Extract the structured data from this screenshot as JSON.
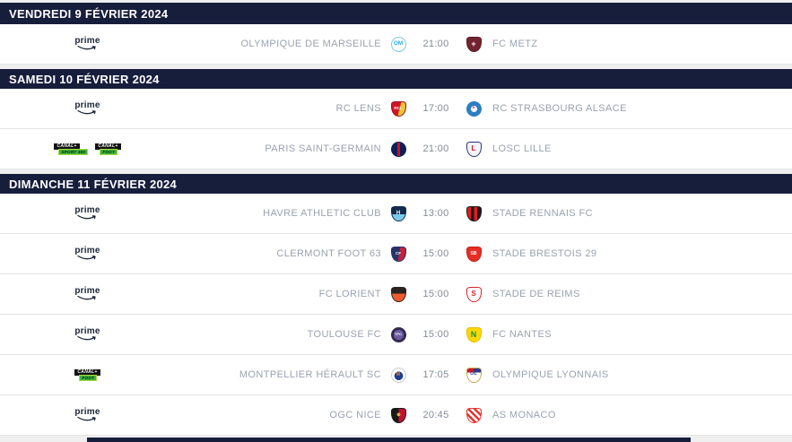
{
  "page": {
    "title": "Ligue 1 fixtures",
    "background": "#efeff0"
  },
  "colors": {
    "header_bg": "#171e3c",
    "row_bg": "#ffffff",
    "team_text": "#9aa2b1",
    "time_text": "#848b99",
    "row_border": "#e4e4e6",
    "canal_green": "#3db53d",
    "prime_dark": "#1b2535"
  },
  "broadcasters": {
    "prime": {
      "type": "prime",
      "label": "prime",
      "icon": "prime-video-logo"
    },
    "canal_sport360": {
      "type": "canal",
      "top": "CANAL+",
      "bottom": "SPORT 360",
      "icon": "canal-plus-sport-360-logo"
    },
    "canal_foot": {
      "type": "canal",
      "top": "CANAL+",
      "bottom": "FOOT",
      "icon": "canal-plus-foot-logo"
    }
  },
  "logos": {
    "marseille": {
      "shape": "circle",
      "background": "#ffffff",
      "border": "1px solid #7ec9ec",
      "text": "OM",
      "text_color": "#2faee0",
      "font_size": 6.5
    },
    "metz": {
      "shape": "shield",
      "background": "#72232e",
      "border": "1px solid #5a1b24",
      "text": "+",
      "text_color": "#ffffff",
      "font_size": 9
    },
    "lens": {
      "shape": "shield",
      "background": "linear-gradient(105deg,#d01626 55%,#efc431 55%)",
      "border": "1px solid #9f1320",
      "text": "RCL",
      "text_color": "#ffffff",
      "font_size": 4.5
    },
    "strasbourg": {
      "shape": "circle",
      "background": "radial-gradient(circle at 50% 50%, #ffffff 32%, #2d7fc3 34%)",
      "border": "1px solid #2d7fc3",
      "text": "+",
      "text_color": "#d01626",
      "font_size": 6
    },
    "psg": {
      "shape": "circle",
      "background": "linear-gradient(90deg,#0e1f58 40%,#cf1020 40% 60%,#0e1f58 60%)",
      "border": "1px solid #0e1f58",
      "text": "",
      "text_color": "#ffffff",
      "font_size": 0
    },
    "lille": {
      "shape": "shield",
      "background": "#f4f4f8",
      "border": "1px solid #26337a",
      "text": "L",
      "text_color": "#d01626",
      "font_size": 8
    },
    "havre": {
      "shape": "shield",
      "background": "linear-gradient(180deg,#112a4e 52%,#79cbe9 52%)",
      "border": "1px solid #112a4e",
      "text": "H",
      "text_color": "#ffffff",
      "font_size": 6
    },
    "rennes": {
      "shape": "shield",
      "background": "linear-gradient(90deg,#e11b22 25%,#1a1a1a 25% 50%,#e11b22 50% 75%,#1a1a1a 75%)",
      "border": "1px solid #1a1a1a",
      "text": "",
      "text_color": "#ffffff",
      "font_size": 0
    },
    "clermont": {
      "shape": "shield",
      "background": "linear-gradient(100deg,#273468 52%,#bf2340 52%)",
      "border": "1px solid #273468",
      "text": "CF",
      "text_color": "#ffffff",
      "font_size": 4.5
    },
    "brest": {
      "shape": "shield",
      "background": "#e62e24",
      "border": "1px solid #c21f18",
      "text": "SB",
      "text_color": "#ffffff",
      "font_size": 5
    },
    "lorient": {
      "shape": "shield",
      "background": "linear-gradient(180deg,#2a2320 45%,#ee5b2c 45%)",
      "border": "1px solid #2a2320",
      "text": "",
      "text_color": "#ffffff",
      "font_size": 0
    },
    "reims": {
      "shape": "shield",
      "background": "#ffffff",
      "border": "1px solid #d3222b",
      "text": "S",
      "text_color": "#d3222b",
      "font_size": 8
    },
    "toulouse": {
      "shape": "circle",
      "background": "radial-gradient(circle,#6c5b9e 52%,#322a50 54%)",
      "border": "1px solid #322a50",
      "text": "TFC",
      "text_color": "#ffffff",
      "font_size": 4
    },
    "nantes": {
      "shape": "shield",
      "background": "#fdd703",
      "border": "1px solid #e3bf00",
      "text": "N",
      "text_color": "#009e49",
      "font_size": 9
    },
    "montpellier": {
      "shape": "circle",
      "background": "radial-gradient(circle at 50% 55%, #1f3e8f 42%, #ffffff 44%)",
      "border": "1px solid #c9ccd4",
      "text": "M",
      "text_color": "#f07f1f",
      "font_size": 5
    },
    "lyon": {
      "shape": "shield",
      "background": "linear-gradient(180deg, rgba(0,0,0,0) 30%, #ffffff 30%), linear-gradient(90deg,#d01626 50%,#273c8f 50%)",
      "border": "1px solid #c9a44c",
      "text": "OL",
      "text_color": "#273c8f",
      "font_size": 5.5
    },
    "nice": {
      "shape": "shield",
      "background": "radial-gradient(circle at 50% 42%, #d8ae4e 16%, rgba(0,0,0,0) 18%), linear-gradient(90deg,#191919 50%,#c1122f 50%)",
      "border": "1px solid #191919",
      "text": "",
      "text_color": "#d8ae4e",
      "font_size": 0
    },
    "monaco": {
      "shape": "shield",
      "background": "repeating-linear-gradient(45deg, #e8352e 0 2.5px, #ffffff 2.5px 5px)",
      "border": "1px solid #e8352e",
      "text": "",
      "text_color": "#ffffff",
      "font_size": 0
    }
  },
  "sections": [
    {
      "date": "VENDREDI 9 FÉVRIER 2024",
      "matches": [
        {
          "broadcasters": [
            "prime"
          ],
          "home": {
            "name": "OLYMPIQUE DE MARSEILLE",
            "logo": "marseille"
          },
          "time": "21:00",
          "away": {
            "name": "FC METZ",
            "logo": "metz"
          }
        }
      ]
    },
    {
      "date": "SAMEDI 10 FÉVRIER 2024",
      "matches": [
        {
          "broadcasters": [
            "prime"
          ],
          "home": {
            "name": "RC LENS",
            "logo": "lens"
          },
          "time": "17:00",
          "away": {
            "name": "RC STRASBOURG ALSACE",
            "logo": "strasbourg"
          }
        },
        {
          "broadcasters": [
            "canal_sport360",
            "canal_foot"
          ],
          "home": {
            "name": "PARIS SAINT-GERMAIN",
            "logo": "psg"
          },
          "time": "21:00",
          "away": {
            "name": "LOSC LILLE",
            "logo": "lille"
          }
        }
      ]
    },
    {
      "date": "DIMANCHE 11 FÉVRIER 2024",
      "matches": [
        {
          "broadcasters": [
            "prime"
          ],
          "home": {
            "name": "HAVRE ATHLETIC CLUB",
            "logo": "havre"
          },
          "time": "13:00",
          "away": {
            "name": "STADE RENNAIS FC",
            "logo": "rennes"
          }
        },
        {
          "broadcasters": [
            "prime"
          ],
          "home": {
            "name": "CLERMONT FOOT 63",
            "logo": "clermont"
          },
          "time": "15:00",
          "away": {
            "name": "STADE BRESTOIS 29",
            "logo": "brest"
          }
        },
        {
          "broadcasters": [
            "prime"
          ],
          "home": {
            "name": "FC LORIENT",
            "logo": "lorient"
          },
          "time": "15:00",
          "away": {
            "name": "STADE DE REIMS",
            "logo": "reims"
          }
        },
        {
          "broadcasters": [
            "prime"
          ],
          "home": {
            "name": "TOULOUSE FC",
            "logo": "toulouse"
          },
          "time": "15:00",
          "away": {
            "name": "FC NANTES",
            "logo": "nantes"
          }
        },
        {
          "broadcasters": [
            "canal_foot"
          ],
          "home": {
            "name": "MONTPELLIER HÉRAULT SC",
            "logo": "montpellier"
          },
          "time": "17:05",
          "away": {
            "name": "OLYMPIQUE LYONNAIS",
            "logo": "lyon"
          }
        },
        {
          "broadcasters": [
            "prime"
          ],
          "home": {
            "name": "OGC NICE",
            "logo": "nice"
          },
          "time": "20:45",
          "away": {
            "name": "AS MONACO",
            "logo": "monaco"
          }
        }
      ]
    }
  ]
}
